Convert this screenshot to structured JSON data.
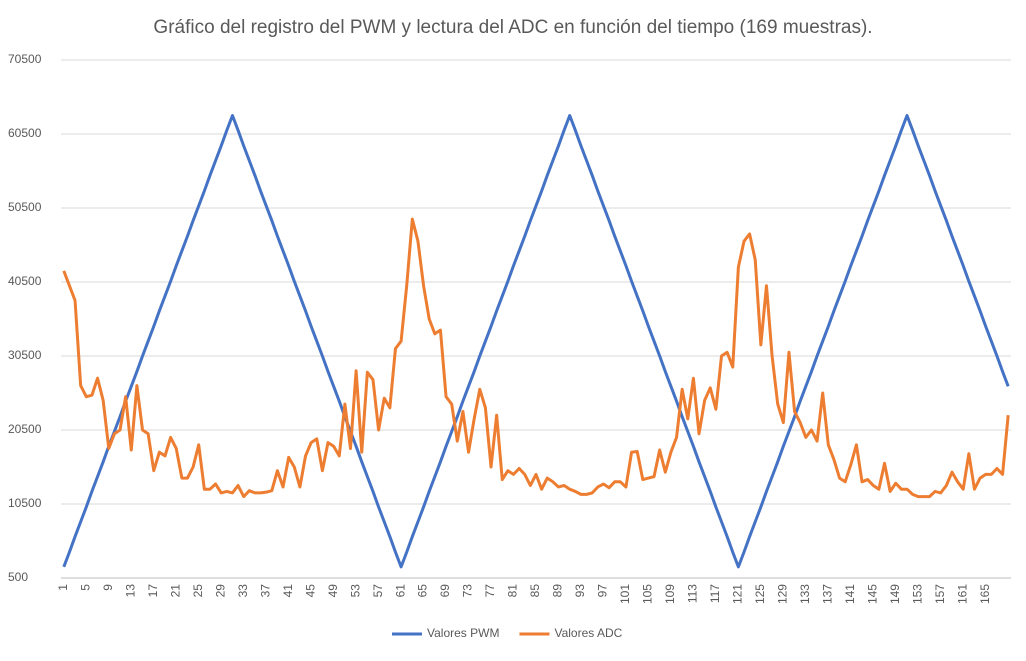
{
  "chart_data": {
    "type": "line",
    "title": "Gráfico del registro del PWM y lectura del ADC en función del tiempo (169 muestras).",
    "categories": [
      1,
      null,
      null,
      null,
      5,
      null,
      null,
      null,
      9,
      null,
      null,
      null,
      13,
      null,
      null,
      null,
      17,
      null,
      null,
      null,
      21,
      null,
      null,
      null,
      25,
      null,
      null,
      null,
      29,
      null,
      null,
      null,
      33,
      null,
      null,
      null,
      37,
      null,
      null,
      null,
      41,
      null,
      null,
      null,
      45,
      null,
      null,
      null,
      49,
      null,
      null,
      null,
      53,
      null,
      null,
      null,
      57,
      null,
      null,
      null,
      61,
      null,
      null,
      null,
      65,
      null,
      null,
      null,
      69,
      null,
      null,
      null,
      73,
      null,
      null,
      null,
      77,
      null,
      null,
      null,
      81,
      null,
      null,
      null,
      85,
      null,
      null,
      null,
      89,
      null,
      null,
      null,
      93,
      null,
      null,
      null,
      97,
      null,
      null,
      null,
      101,
      null,
      null,
      null,
      105,
      null,
      null,
      null,
      109,
      null,
      null,
      null,
      113,
      null,
      null,
      null,
      117,
      null,
      null,
      null,
      121,
      null,
      null,
      null,
      125,
      null,
      null,
      null,
      129,
      null,
      null,
      null,
      133,
      null,
      null,
      null,
      137,
      null,
      null,
      null,
      141,
      null,
      null,
      null,
      145,
      null,
      null,
      null,
      149,
      null,
      null,
      null,
      153,
      null,
      null,
      null,
      157,
      null,
      null,
      null,
      161,
      null,
      null,
      null,
      165,
      null,
      null,
      null,
      null
    ],
    "series": [
      {
        "name": "Valores PWM",
        "color": "#4472c4",
        "values": [
          2000,
          4000,
          6100,
          8100,
          10100,
          12200,
          14200,
          16200,
          18300,
          20300,
          22300,
          24400,
          26400,
          28400,
          30500,
          32500,
          34500,
          36600,
          38600,
          40600,
          42700,
          44700,
          46700,
          48800,
          50800,
          52800,
          54900,
          56900,
          58900,
          61000,
          63000,
          61000,
          58900,
          56900,
          54900,
          52800,
          50800,
          48800,
          46700,
          44700,
          42700,
          40600,
          38600,
          36600,
          34500,
          32500,
          30500,
          28400,
          26400,
          24400,
          22300,
          20300,
          18300,
          16200,
          14200,
          12200,
          10100,
          8100,
          6100,
          4000,
          2000,
          4000,
          6100,
          8100,
          10100,
          12200,
          14200,
          16200,
          18300,
          20300,
          22300,
          24400,
          26400,
          28400,
          30500,
          32500,
          34500,
          36600,
          38600,
          40600,
          42700,
          44700,
          46700,
          48800,
          50800,
          52800,
          54900,
          56900,
          58900,
          61000,
          63000,
          61000,
          58900,
          56900,
          54900,
          52800,
          50800,
          48800,
          46700,
          44700,
          42700,
          40600,
          38600,
          36600,
          34500,
          32500,
          30500,
          28400,
          26400,
          24400,
          22300,
          20300,
          18300,
          16200,
          14200,
          12200,
          10100,
          8100,
          6100,
          4000,
          2000,
          4000,
          6100,
          8100,
          10100,
          12200,
          14200,
          16200,
          18300,
          20300,
          22300,
          24400,
          26400,
          28400,
          30500,
          32500,
          34500,
          36600,
          38600,
          40600,
          42700,
          44700,
          46700,
          48800,
          50800,
          52800,
          54900,
          56900,
          58900,
          61000,
          63000,
          61000,
          58900,
          56900,
          54900,
          52800,
          50800,
          48800,
          46700,
          44700,
          42700,
          40600,
          38600,
          36600,
          34500,
          32500,
          30500,
          28400,
          26400
        ]
      },
      {
        "name": "Valores ADC",
        "color": "#ed7d31",
        "values": [
          42000,
          40000,
          38000,
          26500,
          25000,
          25200,
          27500,
          24500,
          18000,
          20000,
          20500,
          25000,
          17800,
          26500,
          20500,
          20000,
          15000,
          17500,
          17000,
          19500,
          18000,
          14000,
          14000,
          15500,
          18500,
          12500,
          12500,
          13200,
          12000,
          12200,
          12000,
          13000,
          11500,
          12300,
          12000,
          12000,
          12100,
          12300,
          15000,
          12800,
          16800,
          15500,
          12800,
          17000,
          18800,
          19300,
          15000,
          18800,
          18300,
          17000,
          24000,
          18000,
          28500,
          17500,
          28300,
          27300,
          20500,
          24800,
          23500,
          31500,
          32500,
          40000,
          49000,
          46000,
          40000,
          35500,
          33500,
          34000,
          25000,
          24000,
          19000,
          23000,
          17500,
          22000,
          26000,
          23500,
          15500,
          22500,
          13800,
          15000,
          14500,
          15300,
          14500,
          13000,
          14500,
          12500,
          14000,
          13500,
          12800,
          13000,
          12500,
          12200,
          11800,
          11800,
          12000,
          12800,
          13200,
          12700,
          13500,
          13500,
          12800,
          17500,
          17600,
          13800,
          14000,
          14200,
          17800,
          14800,
          17500,
          19500,
          26000,
          22000,
          27500,
          20000,
          24500,
          26200,
          23300,
          30500,
          31000,
          29000,
          42500,
          46000,
          47000,
          43500,
          32000,
          40000,
          30500,
          24000,
          21500,
          31000,
          23000,
          21500,
          19500,
          20500,
          19000,
          25500,
          18500,
          16500,
          14000,
          13500,
          15800,
          18500,
          13500,
          13800,
          13000,
          12500,
          16000,
          12200,
          13300,
          12500,
          12500,
          11800,
          11500,
          11500,
          11500,
          12200,
          12000,
          13000,
          14800,
          13500,
          12500,
          17300,
          12500,
          14000,
          14500,
          14500,
          15300,
          14500,
          22500
        ]
      }
    ],
    "ylim": [
      500,
      70500
    ],
    "yticks": [
      500,
      10500,
      20500,
      30500,
      40500,
      50500,
      60500,
      70500
    ],
    "grid": true,
    "legend": "bottom"
  }
}
